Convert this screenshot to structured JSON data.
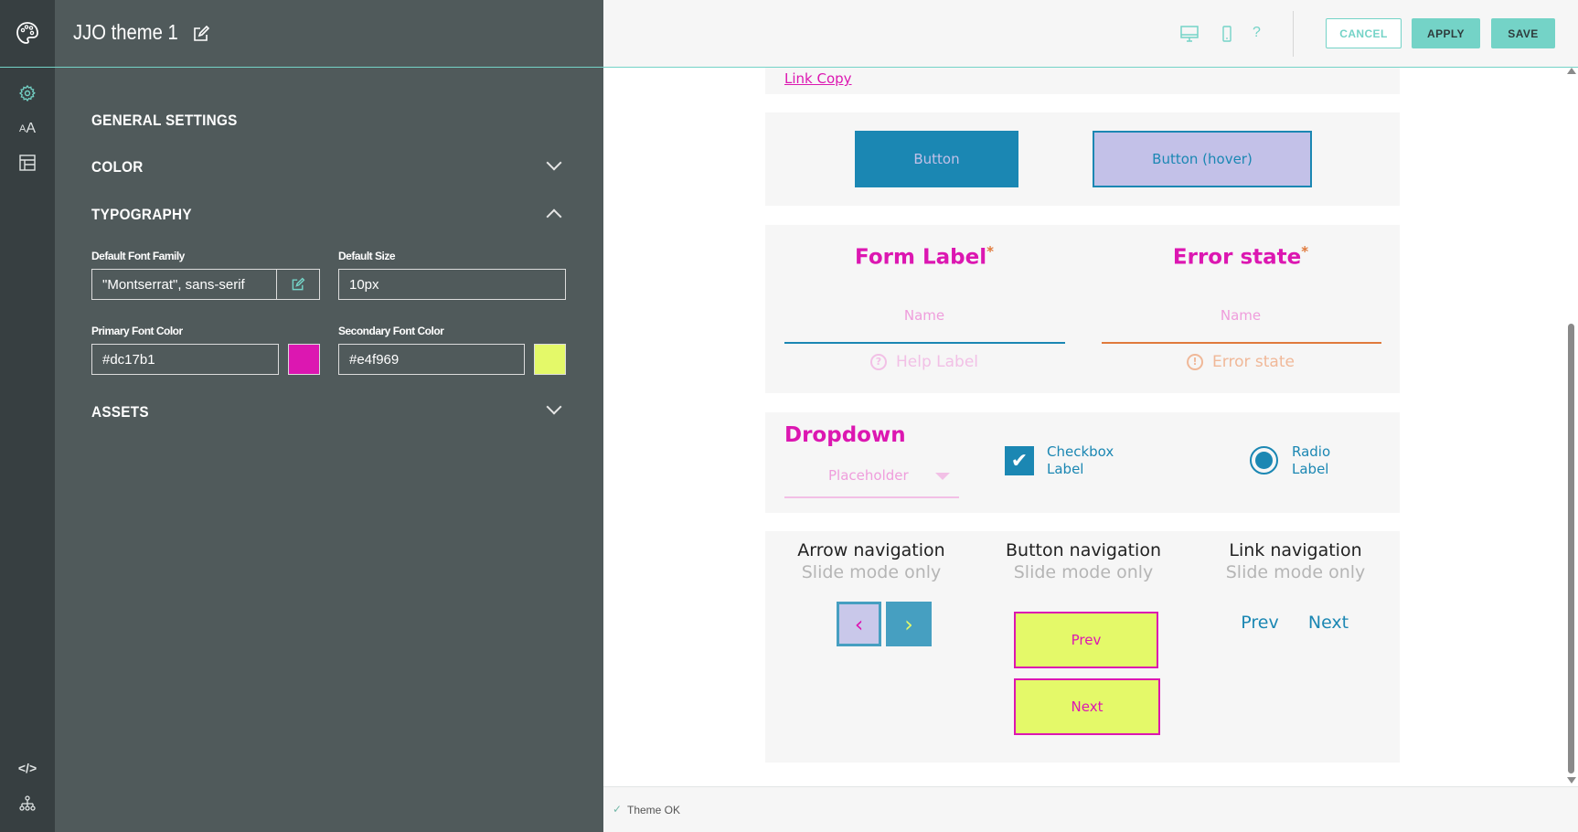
{
  "header": {
    "title": "JJO theme 1",
    "cancel": "CANCEL",
    "apply": "APPLY",
    "save": "SAVE",
    "help": "?"
  },
  "rail": {
    "icons": [
      "palette-icon",
      "gear-icon",
      "font-size-icon",
      "layout-icon",
      "code-icon",
      "sitemap-icon"
    ]
  },
  "panel": {
    "general_settings": "GENERAL SETTINGS",
    "color": "COLOR",
    "typography": "TYPOGRAPHY",
    "assets": "ASSETS",
    "fields": {
      "font_family_label": "Default Font Family",
      "font_family_value": "\"Montserrat\", sans-serif",
      "size_label": "Default Size",
      "size_value": "10px",
      "primary_label": "Primary Font Color",
      "primary_value": "#dc17b1",
      "secondary_label": "Secondary Font Color",
      "secondary_value": "#e4f969"
    }
  },
  "colors": {
    "accent": "#74d3c7",
    "primary": "#dc17b1",
    "secondary": "#e4f969",
    "button": "#1b87b3",
    "hover": "#c3c1e8",
    "error": "#e07a3c"
  },
  "preview": {
    "link_copy": "Link Copy",
    "button": "Button",
    "button_hover": "Button (hover)",
    "form_label": "Form Label",
    "error_label": "Error state",
    "required": "*",
    "name_placeholder": "Name",
    "help_label": "Help Label",
    "error_text": "Error state",
    "dropdown": "Dropdown",
    "dropdown_placeholder": "Placeholder",
    "checkbox_label_1": "Checkbox",
    "checkbox_label_2": "Label",
    "radio_label_1": "Radio",
    "radio_label_2": "Label",
    "nav": [
      {
        "title": "Arrow navigation",
        "sub": "Slide mode only"
      },
      {
        "title": "Button navigation",
        "sub": "Slide mode only"
      },
      {
        "title": "Link navigation",
        "sub": "Slide mode only"
      }
    ],
    "prev": "Prev",
    "next": "Next"
  },
  "status": {
    "text": "Theme OK",
    "check": "✓"
  }
}
